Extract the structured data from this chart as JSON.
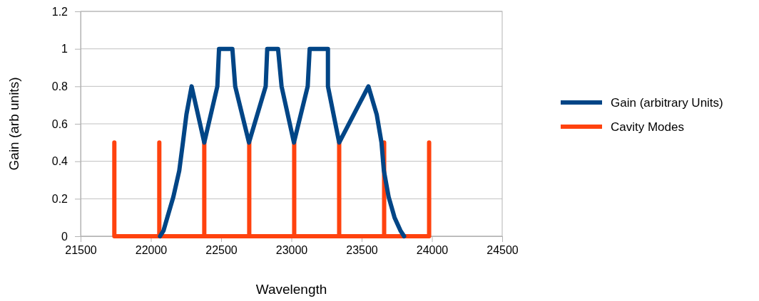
{
  "chart_data": {
    "type": "line",
    "xlabel": "Wavelength",
    "ylabel": "Gain (arb units)",
    "xlim": [
      21500,
      24500
    ],
    "xticks": [
      21500,
      22000,
      22500,
      23000,
      23500,
      24000,
      24500
    ],
    "ylim": [
      0,
      1.2
    ],
    "yticks": [
      0,
      0.2,
      0.4,
      0.6,
      0.8,
      1,
      1.2
    ],
    "grid": "y",
    "legend": "right",
    "marker": "none",
    "line_style": "solid",
    "series": [
      {
        "name": "Gain (arbitrary Units)",
        "color": "#004586",
        "x": [
          22065,
          22090,
          22117,
          22160,
          22202,
          22228,
          22253,
          22290,
          22380,
          22473,
          22485,
          22580,
          22600,
          22698,
          22817,
          22828,
          22905,
          22930,
          23018,
          23116,
          23130,
          23260,
          23260,
          23340,
          23548,
          23607,
          23641,
          23658,
          23692,
          23734,
          23776,
          23802
        ],
        "values": [
          0,
          0.03,
          0.1,
          0.21,
          0.35,
          0.5,
          0.65,
          0.8,
          0.5,
          0.8,
          1,
          1,
          0.8,
          0.5,
          0.8,
          1,
          1,
          0.8,
          0.5,
          0.8,
          1,
          1,
          0.8,
          0.5,
          0.8,
          0.65,
          0.5,
          0.35,
          0.21,
          0.1,
          0.03,
          0
        ]
      },
      {
        "name": "Cavity Modes",
        "color": "#ff420e",
        "x": [
          21740,
          21740,
          22060,
          22060,
          22060,
          22380,
          22380,
          22380,
          22700,
          22700,
          22700,
          23020,
          23020,
          23020,
          23340,
          23340,
          23340,
          23660,
          23660,
          23660,
          23980,
          23980
        ],
        "values": [
          0.5,
          0,
          0,
          0.5,
          0,
          0,
          0.5,
          0,
          0,
          0.5,
          0,
          0,
          0.5,
          0,
          0,
          0.5,
          0,
          0,
          0.5,
          0,
          0,
          0.5
        ]
      }
    ]
  }
}
